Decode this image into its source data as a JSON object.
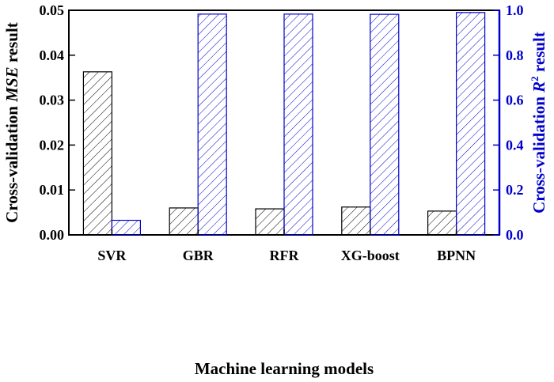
{
  "chart_data": {
    "type": "bar",
    "categories": [
      "SVR",
      "GBR",
      "RFR",
      "XG-boost",
      "BPNN"
    ],
    "series": [
      {
        "axis": "left",
        "values": [
          0.0363,
          0.006,
          0.0058,
          0.0062,
          0.0053
        ],
        "color": "#000000",
        "pattern": "diagonal-hatch"
      },
      {
        "axis": "right",
        "values": [
          0.065,
          0.983,
          0.983,
          0.982,
          0.99
        ],
        "color": "#0000cc",
        "pattern": "diagonal-hatch"
      }
    ],
    "xlabel": "Machine learning models",
    "ylabel_left": {
      "prefix": "Cross-validation ",
      "italic": "MSE",
      "suffix": " result"
    },
    "ylabel_right": {
      "prefix": "Cross-validation ",
      "italic": "R",
      "sup": "2",
      "suffix": " result"
    },
    "ylim_left": [
      0,
      0.05
    ],
    "ylim_right": [
      0,
      1.0
    ],
    "yticks_left": [
      "0.00",
      "0.01",
      "0.02",
      "0.03",
      "0.04",
      "0.05"
    ],
    "yticks_right": [
      "0.0",
      "0.2",
      "0.4",
      "0.6",
      "0.8",
      "1.0"
    ],
    "left_axis_color": "#000000",
    "right_axis_color": "#0000cc",
    "grid": false,
    "legend": "none"
  }
}
